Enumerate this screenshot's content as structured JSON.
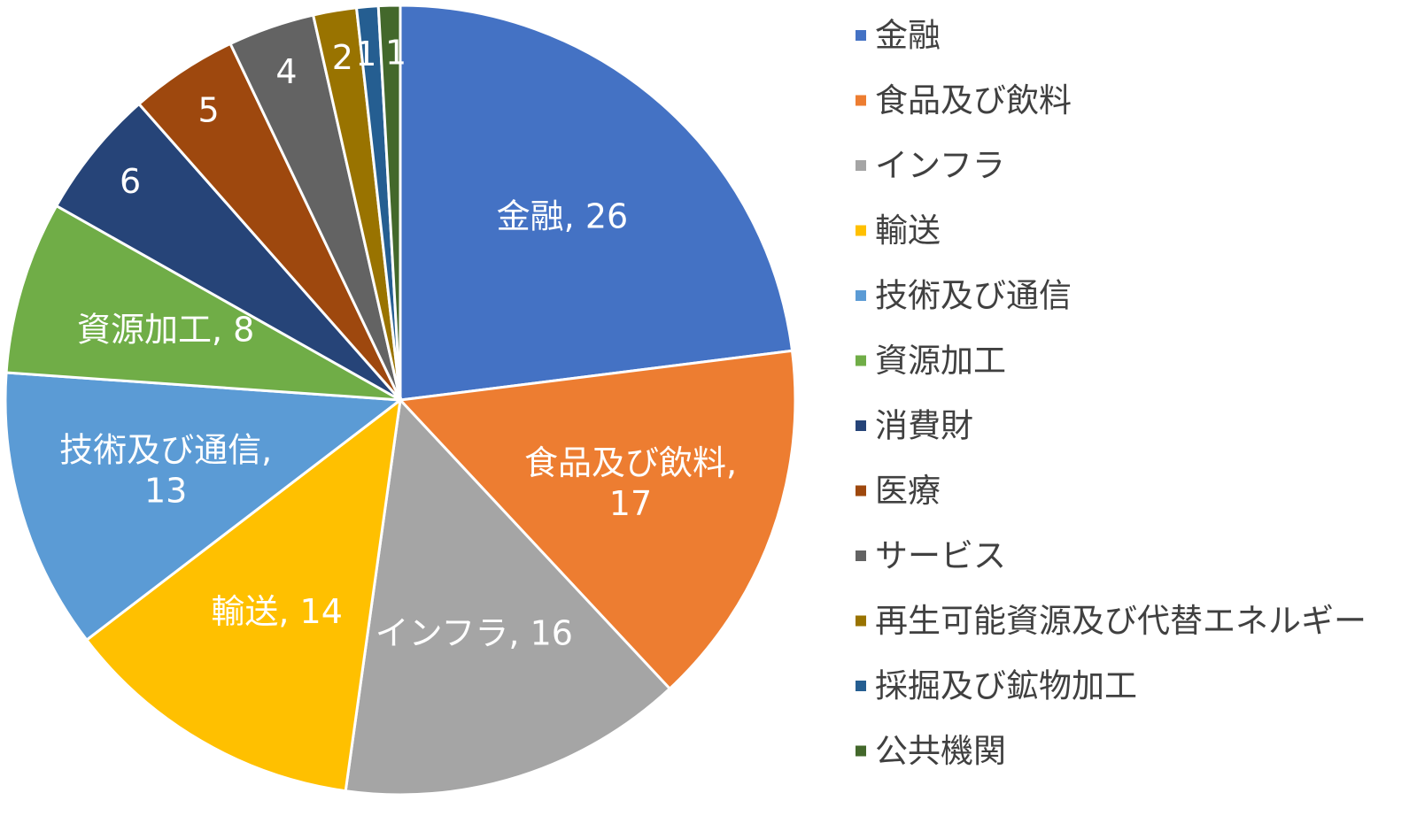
{
  "chart_data": {
    "type": "pie",
    "title": "",
    "legend_position": "right",
    "slices": [
      {
        "name": "金融",
        "value": 26,
        "color": "#4472C4",
        "label_text": "金融, 26"
      },
      {
        "name": "食品及び飲料",
        "value": 17,
        "color": "#ED7D31",
        "label_text": "食品及び飲料,|17"
      },
      {
        "name": "インフラ",
        "value": 16,
        "color": "#A5A5A5",
        "label_text": "インフラ, 16"
      },
      {
        "name": "輸送",
        "value": 14,
        "color": "#FFC000",
        "label_text": "輸送, 14"
      },
      {
        "name": "技術及び通信",
        "value": 13,
        "color": "#5B9BD5",
        "label_text": "技術及び通信,|13"
      },
      {
        "name": "資源加工",
        "value": 8,
        "color": "#70AD47",
        "label_text": "資源加工, 8"
      },
      {
        "name": "消費財",
        "value": 6,
        "color": "#264478",
        "label_text": "6"
      },
      {
        "name": "医療",
        "value": 5,
        "color": "#9E480E",
        "label_text": "5"
      },
      {
        "name": "サービス",
        "value": 4,
        "color": "#636363",
        "label_text": "4"
      },
      {
        "name": "再生可能資源及び代替エネルギー",
        "value": 2,
        "color": "#997300",
        "label_text": "2"
      },
      {
        "name": "採掘及び鉱物加工",
        "value": 1,
        "color": "#255E91",
        "label_text": "1"
      },
      {
        "name": "公共機関",
        "value": 1,
        "color": "#43682B",
        "label_text": "1"
      }
    ]
  }
}
